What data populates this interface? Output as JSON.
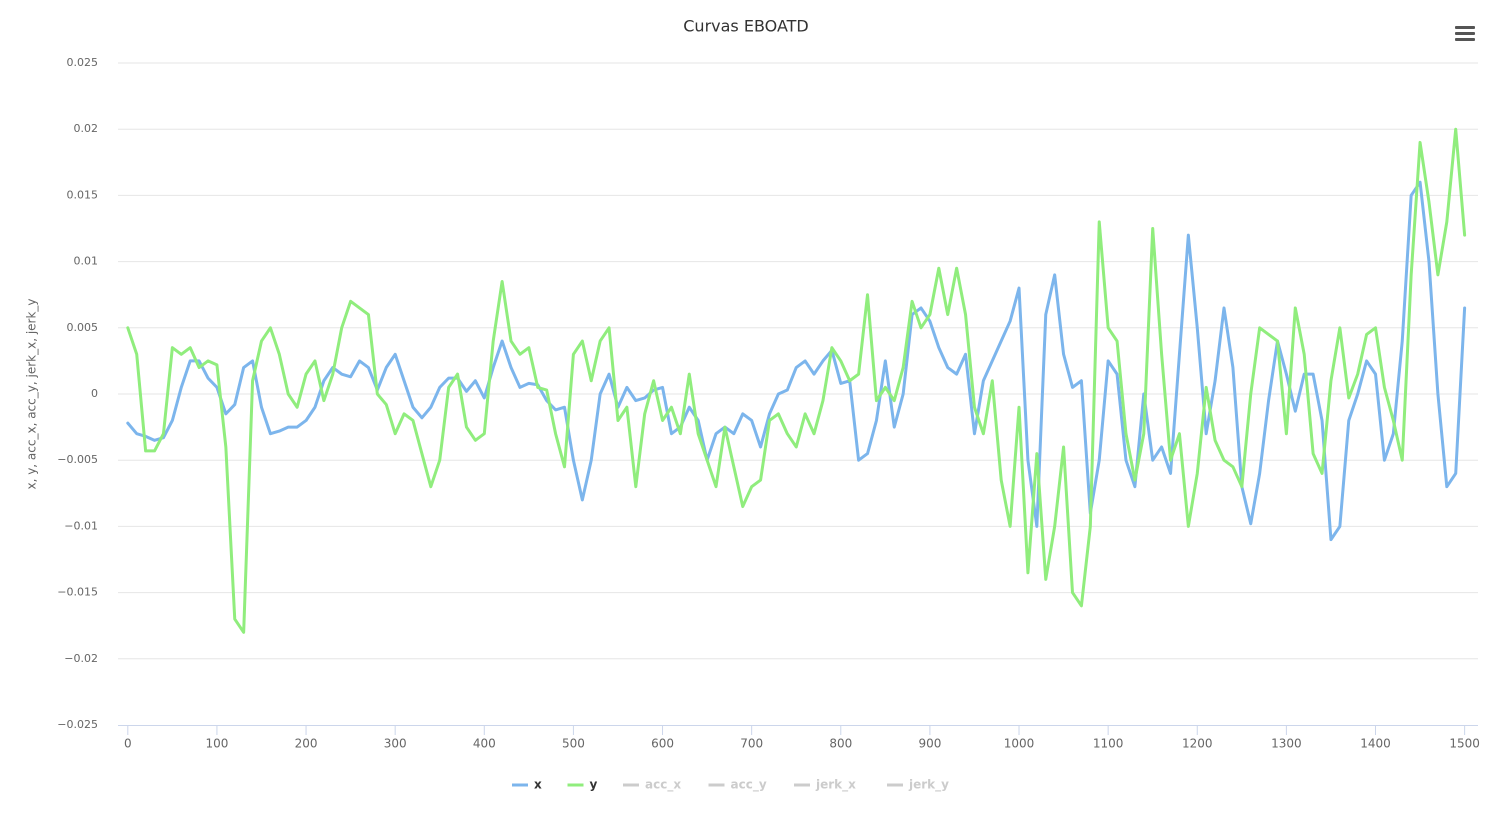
{
  "chart_data": {
    "type": "line",
    "title": "Curvas EBOATD",
    "y_label": "x, y, acc_x, acc_y, jerk_x, jerk_y",
    "xlim": [
      -11,
      1515
    ],
    "ylim": [
      -0.025,
      0.025
    ],
    "xticks": [
      0,
      100,
      200,
      300,
      400,
      500,
      600,
      700,
      800,
      900,
      1000,
      1100,
      1200,
      1300,
      1400,
      1500
    ],
    "yticks": [
      {
        "value": -0.025,
        "label": "−0.025"
      },
      {
        "value": -0.02,
        "label": "−0.02"
      },
      {
        "value": -0.015,
        "label": "−0.015"
      },
      {
        "value": -0.01,
        "label": "−0.01"
      },
      {
        "value": -0.005,
        "label": "−0.005"
      },
      0,
      0.005,
      0.01,
      0.015,
      0.02,
      0.025
    ],
    "grid": true,
    "x": [
      0,
      10,
      20,
      30,
      40,
      50,
      60,
      70,
      80,
      90,
      100,
      110,
      120,
      130,
      140,
      150,
      160,
      170,
      180,
      190,
      200,
      210,
      220,
      230,
      240,
      250,
      260,
      270,
      280,
      290,
      300,
      310,
      320,
      330,
      340,
      350,
      360,
      370,
      380,
      390,
      400,
      410,
      420,
      430,
      440,
      450,
      460,
      470,
      480,
      490,
      500,
      510,
      520,
      530,
      540,
      550,
      560,
      570,
      580,
      590,
      600,
      610,
      620,
      630,
      640,
      650,
      660,
      670,
      680,
      690,
      700,
      710,
      720,
      730,
      740,
      750,
      760,
      770,
      780,
      790,
      800,
      810,
      820,
      830,
      840,
      850,
      860,
      870,
      880,
      890,
      900,
      910,
      920,
      930,
      940,
      950,
      960,
      970,
      980,
      990,
      1000,
      1010,
      1020,
      1030,
      1040,
      1050,
      1060,
      1070,
      1080,
      1090,
      1100,
      1110,
      1120,
      1130,
      1140,
      1150,
      1160,
      1170,
      1180,
      1190,
      1200,
      1210,
      1220,
      1230,
      1240,
      1250,
      1260,
      1270,
      1280,
      1290,
      1300,
      1310,
      1320,
      1330,
      1340,
      1350,
      1360,
      1370,
      1380,
      1390,
      1400,
      1410,
      1420,
      1430,
      1440,
      1450,
      1460,
      1470,
      1480,
      1490,
      1500
    ],
    "series": [
      {
        "name": "x",
        "color": "#7cb5ec",
        "visible": true,
        "values": [
          -0.0022,
          -0.003,
          -0.0032,
          -0.0035,
          -0.0033,
          -0.002,
          0.0005,
          0.0025,
          0.0025,
          0.0012,
          0.0005,
          -0.0015,
          -0.0008,
          0.002,
          0.0025,
          -0.001,
          -0.003,
          -0.0028,
          -0.0025,
          -0.0025,
          -0.002,
          -0.001,
          0.001,
          0.002,
          0.0015,
          0.0013,
          0.0025,
          0.002,
          0.0003,
          0.002,
          0.003,
          0.001,
          -0.001,
          -0.0018,
          -0.001,
          0.0005,
          0.0012,
          0.0012,
          0.0002,
          0.001,
          -0.0003,
          0.002,
          0.004,
          0.002,
          0.0005,
          0.0008,
          0.0007,
          -0.0005,
          -0.0012,
          -0.001,
          -0.005,
          -0.008,
          -0.005,
          0,
          0.0015,
          -0.001,
          0.0005,
          -0.0005,
          -0.0003,
          0.0003,
          0.0005,
          -0.003,
          -0.0025,
          -0.001,
          -0.002,
          -0.005,
          -0.003,
          -0.0025,
          -0.003,
          -0.0015,
          -0.002,
          -0.004,
          -0.0015,
          0,
          0.0003,
          0.002,
          0.0025,
          0.0015,
          0.0025,
          0.0033,
          0.0008,
          0.001,
          -0.005,
          -0.0045,
          -0.002,
          0.0025,
          -0.0025,
          0,
          0.006,
          0.0065,
          0.0055,
          0.0035,
          0.002,
          0.0015,
          0.003,
          -0.003,
          0.001,
          0.0025,
          0.004,
          0.0055,
          0.008,
          -0.005,
          -0.01,
          0.006,
          0.009,
          0.003,
          0.0005,
          0.001,
          -0.009,
          -0.005,
          0.0025,
          0.0015,
          -0.005,
          -0.007,
          0,
          -0.005,
          -0.004,
          -0.006,
          0.003,
          0.012,
          0.005,
          -0.003,
          0.001,
          0.0065,
          0.002,
          -0.007,
          -0.0098,
          -0.006,
          -0.0005,
          0.004,
          0.0015,
          -0.0013,
          0.0015,
          0.0015,
          -0.002,
          -0.011,
          -0.01,
          -0.002,
          0,
          0.0025,
          0.0015,
          -0.005,
          -0.003,
          0.004,
          0.015,
          0.016,
          0.01,
          0,
          -0.007,
          -0.006,
          0.0065
        ]
      },
      {
        "name": "y",
        "color": "#90ed7d",
        "visible": true,
        "values": [
          0.005,
          0.003,
          -0.0043,
          -0.0043,
          -0.003,
          0.0035,
          0.003,
          0.0035,
          0.002,
          0.0025,
          0.0022,
          -0.004,
          -0.017,
          -0.018,
          0.001,
          0.004,
          0.005,
          0.003,
          0,
          -0.001,
          0.0015,
          0.0025,
          -0.0005,
          0.0015,
          0.005,
          0.007,
          0.0065,
          0.006,
          0,
          -0.0008,
          -0.003,
          -0.0015,
          -0.002,
          -0.0045,
          -0.007,
          -0.005,
          0.0005,
          0.0015,
          -0.0025,
          -0.0035,
          -0.003,
          0.004,
          0.0085,
          0.004,
          0.003,
          0.0035,
          0.0005,
          0.0003,
          -0.003,
          -0.0055,
          0.003,
          0.004,
          0.001,
          0.004,
          0.005,
          -0.002,
          -0.001,
          -0.007,
          -0.0015,
          0.001,
          -0.002,
          -0.001,
          -0.003,
          0.0015,
          -0.003,
          -0.005,
          -0.007,
          -0.0025,
          -0.0055,
          -0.0085,
          -0.007,
          -0.0065,
          -0.002,
          -0.0015,
          -0.003,
          -0.004,
          -0.0015,
          -0.003,
          -0.0005,
          0.0035,
          0.0025,
          0.001,
          0.0015,
          0.0075,
          -0.0005,
          0.0005,
          -0.0005,
          0.002,
          0.007,
          0.005,
          0.006,
          0.0095,
          0.006,
          0.0095,
          0.006,
          -0.001,
          -0.003,
          0.001,
          -0.0065,
          -0.01,
          -0.001,
          -0.0135,
          -0.0045,
          -0.014,
          -0.01,
          -0.004,
          -0.015,
          -0.016,
          -0.01,
          0.013,
          0.005,
          0.004,
          -0.003,
          -0.0065,
          -0.003,
          0.0125,
          0.003,
          -0.005,
          -0.003,
          -0.01,
          -0.006,
          0.0005,
          -0.0035,
          -0.005,
          -0.0055,
          -0.007,
          0,
          0.005,
          0.0045,
          0.004,
          -0.003,
          0.0065,
          0.003,
          -0.0045,
          -0.006,
          0.001,
          0.005,
          -0.0003,
          0.0015,
          0.0045,
          0.005,
          0.0005,
          -0.002,
          -0.005,
          0.009,
          0.019,
          0.0145,
          0.009,
          0.013,
          0.02,
          0.012
        ]
      },
      {
        "name": "acc_x",
        "visible": false
      },
      {
        "name": "acc_y",
        "visible": false
      },
      {
        "name": "jerk_x",
        "visible": false
      },
      {
        "name": "jerk_y",
        "visible": false
      }
    ]
  }
}
